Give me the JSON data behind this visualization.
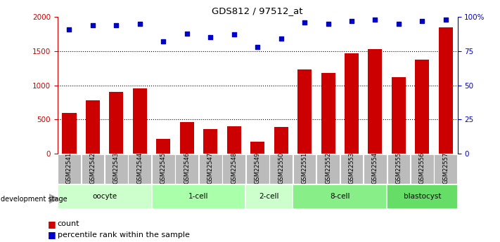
{
  "title": "GDS812 / 97512_at",
  "samples": [
    "GSM22541",
    "GSM22542",
    "GSM22543",
    "GSM22544",
    "GSM22545",
    "GSM22546",
    "GSM22547",
    "GSM22548",
    "GSM22549",
    "GSM22550",
    "GSM22551",
    "GSM22552",
    "GSM22553",
    "GSM22554",
    "GSM22555",
    "GSM22556",
    "GSM22557"
  ],
  "counts": [
    600,
    780,
    900,
    950,
    220,
    460,
    360,
    400,
    175,
    390,
    1230,
    1180,
    1470,
    1530,
    1120,
    1380,
    1850
  ],
  "percentiles": [
    91,
    94,
    94,
    95,
    82,
    88,
    85,
    87,
    78,
    84,
    96,
    95,
    97,
    98,
    95,
    97,
    98
  ],
  "bar_color": "#cc0000",
  "scatter_color": "#0000cc",
  "left_axis_color": "#cc0000",
  "right_axis_color": "#0000cc",
  "ytick_labels_left": [
    "0",
    "500",
    "1000",
    "1500",
    "2000"
  ],
  "ytick_labels_right": [
    "0",
    "25",
    "50",
    "75",
    "100%"
  ],
  "group_data": [
    {
      "label": "oocyte",
      "start": 0,
      "end": 3,
      "color": "#ccffcc"
    },
    {
      "label": "1-cell",
      "start": 4,
      "end": 7,
      "color": "#aaffaa"
    },
    {
      "label": "2-cell",
      "start": 8,
      "end": 9,
      "color": "#ccffcc"
    },
    {
      "label": "8-cell",
      "start": 10,
      "end": 13,
      "color": "#88ee88"
    },
    {
      "label": "blastocyst",
      "start": 14,
      "end": 16,
      "color": "#66dd66"
    }
  ],
  "dev_stage_label": "development stage",
  "legend_count_label": "count",
  "legend_pct_label": "percentile rank within the sample",
  "background_color": "#ffffff",
  "xtick_bg_color": "#bbbbbb",
  "xtick_text_color": "#000000"
}
